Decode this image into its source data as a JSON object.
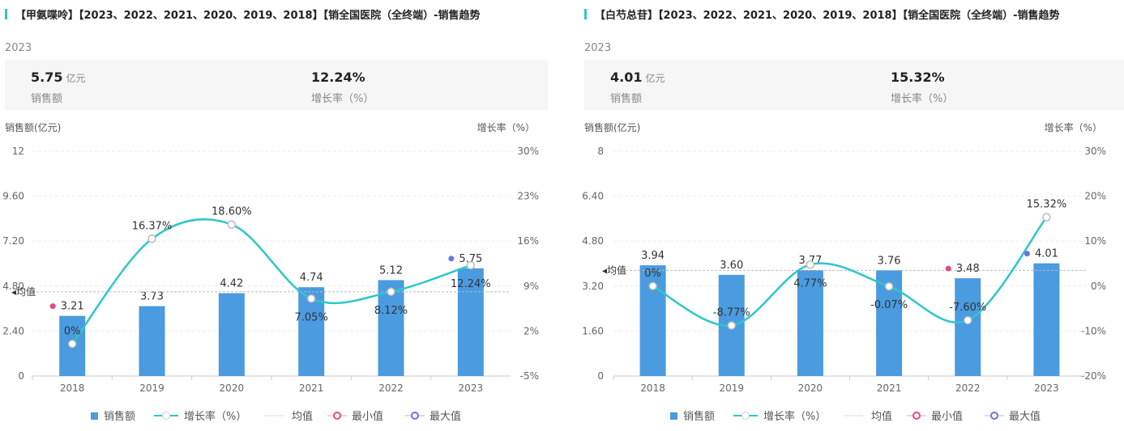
{
  "legend": {
    "sales": "销售额",
    "growth": "增长率（%）",
    "mean": "均值",
    "min": "最小值",
    "max": "最大值"
  },
  "colors": {
    "bar": "#4a9be0",
    "line": "#2ec7c9",
    "min": "#f0467a",
    "max": "#6a72e8",
    "mean": "#cccccc"
  },
  "panels": [
    {
      "title": "【甲氨喋呤】【2023、2022、2021、2020、2019、2018】【销全国医院（全终端）-销售趋势",
      "year": "2023",
      "kpi_value": "5.75",
      "kpi_unit": "亿元",
      "kpi_label": "销售额",
      "kpi_growth": "12.24%",
      "kpi_growth_label": "增长率（%）",
      "chart_data": {
        "type": "bar+line",
        "categories": [
          "2018",
          "2019",
          "2020",
          "2021",
          "2022",
          "2023"
        ],
        "series": [
          {
            "name": "销售额",
            "axis": "left",
            "values": [
              3.21,
              3.73,
              4.42,
              4.74,
              5.12,
              5.75
            ],
            "labels": [
              "3.21",
              "3.73",
              "4.42",
              "4.74",
              "5.12",
              "5.75"
            ]
          },
          {
            "name": "增长率（%）",
            "axis": "right",
            "values": [
              0,
              16.37,
              18.6,
              7.05,
              8.12,
              12.24
            ],
            "labels": [
              "0%",
              "16.37%",
              "18.60%",
              "7.05%",
              "8.12%",
              "12.24%"
            ]
          }
        ],
        "ylabel": "销售额(亿元)",
        "y2label": "增长率（%）",
        "ylim": [
          0,
          12
        ],
        "y2lim": [
          -5,
          30
        ],
        "yticks": [
          "0",
          "2.40",
          "4.80",
          "7.20",
          "9.60",
          "12"
        ],
        "y2ticks": [
          "-5%",
          "2%",
          "9%",
          "16%",
          "23%",
          "30%"
        ],
        "mean_label": "均值",
        "mean": 4.495,
        "min_index": 0,
        "max_index": 5
      }
    },
    {
      "title": "【白芍总苷】【2023、2022、2021、2020、2019、2018】【销全国医院（全终端）-销售趋势",
      "year": "2023",
      "kpi_value": "4.01",
      "kpi_unit": "亿元",
      "kpi_label": "销售额",
      "kpi_growth": "15.32%",
      "kpi_growth_label": "增长率（%）",
      "chart_data": {
        "type": "bar+line",
        "categories": [
          "2018",
          "2019",
          "2020",
          "2021",
          "2022",
          "2023"
        ],
        "series": [
          {
            "name": "销售额",
            "axis": "left",
            "values": [
              3.94,
              3.6,
              3.77,
              3.76,
              3.48,
              4.01
            ],
            "labels": [
              "3.94",
              "3.60",
              "3.77",
              "3.76",
              "3.48",
              "4.01"
            ]
          },
          {
            "name": "增长率（%）",
            "axis": "right",
            "values": [
              0,
              -8.77,
              4.77,
              -0.07,
              -7.6,
              15.32
            ],
            "labels": [
              "0%",
              "-8.77%",
              "4.77%",
              "-0.07%",
              "-7.60%",
              "15.32%"
            ]
          }
        ],
        "ylabel": "销售额(亿元)",
        "y2label": "增长率（%）",
        "ylim": [
          0,
          8
        ],
        "y2lim": [
          -20,
          30
        ],
        "yticks": [
          "0",
          "1.60",
          "3.20",
          "4.80",
          "6.40",
          "8"
        ],
        "y2ticks": [
          "-20%",
          "-10%",
          "0%",
          "10%",
          "20%",
          "30%"
        ],
        "mean_label": "均值",
        "mean": 3.76,
        "min_index": 4,
        "max_index": 5
      }
    }
  ]
}
